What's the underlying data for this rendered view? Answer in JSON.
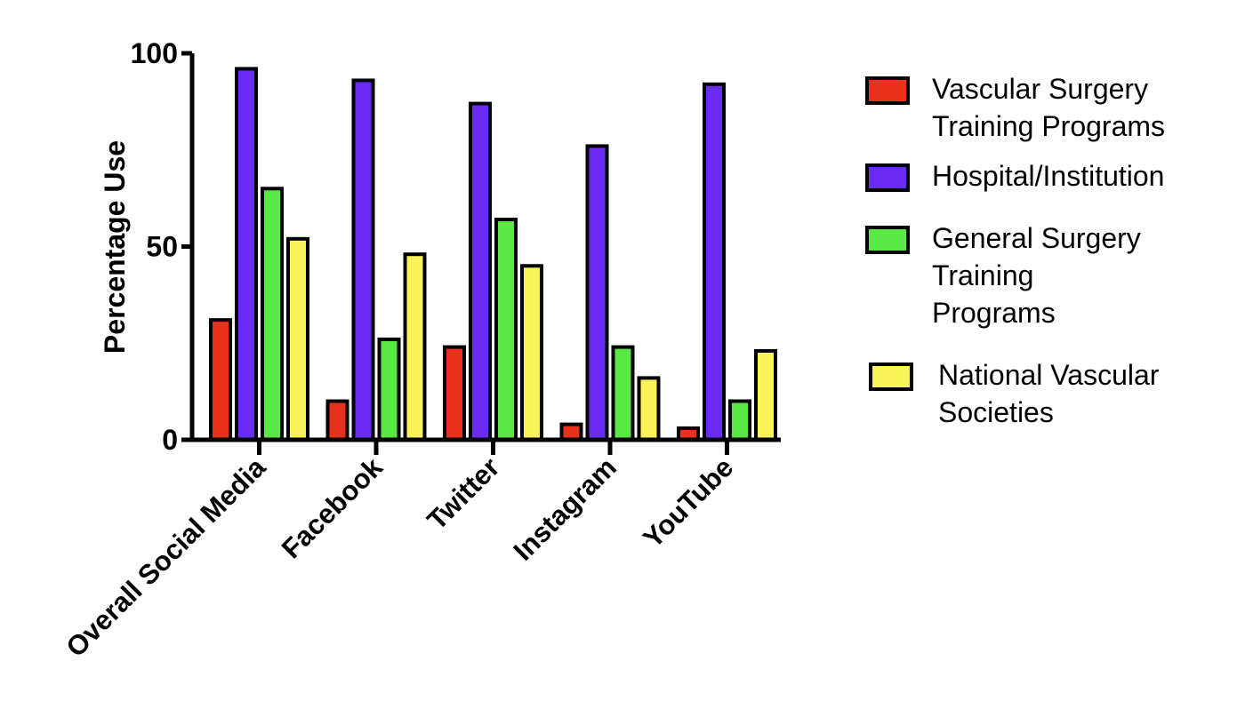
{
  "chart_data": {
    "type": "bar",
    "ylabel": "Percentage Use",
    "ylim": [
      0,
      100
    ],
    "yticks": [
      0,
      50,
      100
    ],
    "categories": [
      "Overall Social Media",
      "Facebook",
      "Twitter",
      "Instagram",
      "YouTube"
    ],
    "series": [
      {
        "name": "Vascular Surgery Training Programs",
        "legend_lines": [
          "Vascular Surgery",
          "Training Programs"
        ],
        "color": "#e8321e",
        "values": [
          31,
          10,
          24,
          4,
          3
        ]
      },
      {
        "name": "Hospital/Institution",
        "legend_lines": [
          "Hospital/Institution"
        ],
        "color": "#6a2cf5",
        "values": [
          96,
          93,
          87,
          76,
          92
        ]
      },
      {
        "name": "General Surgery Training Programs",
        "legend_lines": [
          "General Surgery",
          "Training",
          "Programs"
        ],
        "color": "#5be845",
        "values": [
          65,
          26,
          57,
          24,
          10
        ]
      },
      {
        "name": "National Vascular Societies",
        "legend_lines": [
          "National Vascular",
          "Societies"
        ],
        "color": "#fbf35a",
        "values": [
          52,
          48,
          45,
          16,
          23
        ]
      }
    ],
    "grid": false,
    "legend_position": "right"
  }
}
